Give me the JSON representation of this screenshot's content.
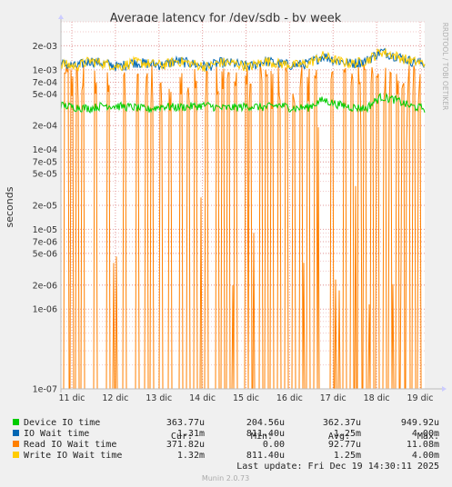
{
  "chart_data": {
    "type": "line",
    "title": "Average latency for /dev/sdb - by week",
    "ylabel": "seconds",
    "xlabel": "",
    "y_scale": "log",
    "ylim": [
      1e-07,
      0.004
    ],
    "y_ticks": [
      {
        "v": 0.002,
        "label": "2e-03"
      },
      {
        "v": 0.001,
        "label": "1e-03"
      },
      {
        "v": 0.0007,
        "label": "7e-04"
      },
      {
        "v": 0.0005,
        "label": "5e-04"
      },
      {
        "v": 0.0002,
        "label": "2e-04"
      },
      {
        "v": 0.0001,
        "label": "1e-04"
      },
      {
        "v": 7e-05,
        "label": "7e-05"
      },
      {
        "v": 5e-05,
        "label": "5e-05"
      },
      {
        "v": 2e-05,
        "label": "2e-05"
      },
      {
        "v": 1e-05,
        "label": "1e-05"
      },
      {
        "v": 7e-06,
        "label": "7e-06"
      },
      {
        "v": 5e-06,
        "label": "5e-06"
      },
      {
        "v": 2e-06,
        "label": "2e-06"
      },
      {
        "v": 1e-06,
        "label": "1e-06"
      },
      {
        "v": 1e-07,
        "label": "1e-07"
      }
    ],
    "x_ticks": [
      "11 dic",
      "12 dic",
      "13 dic",
      "14 dic",
      "15 dic",
      "16 dic",
      "17 dic",
      "18 dic",
      "19 dic"
    ],
    "grid": true,
    "series": [
      {
        "name": "Device IO time",
        "color": "#00cc00",
        "profile": [
          0.00036,
          0.00034,
          0.00033,
          0.00036,
          0.00035,
          0.00034,
          0.00032,
          0.00035,
          0.00034,
          0.00035,
          0.00036,
          0.00033,
          0.00034,
          0.00035,
          0.00034,
          0.00036,
          0.00033,
          0.00034,
          0.00042,
          0.00037,
          0.00034,
          0.00033,
          0.00046,
          0.00042,
          0.00035,
          0.00033
        ]
      },
      {
        "name": "IO Wait time",
        "color": "#0066b3",
        "profile": [
          0.0012,
          0.0011,
          0.0013,
          0.0012,
          0.0011,
          0.00125,
          0.0012,
          0.00115,
          0.0013,
          0.0012,
          0.0011,
          0.00125,
          0.0012,
          0.0011,
          0.0013,
          0.0012,
          0.00115,
          0.0012,
          0.0015,
          0.0013,
          0.0012,
          0.0013,
          0.0017,
          0.0015,
          0.0013,
          0.0012
        ]
      },
      {
        "name": "Read IO Wait time",
        "color": "#ff8000",
        "spikes": [
          0.012,
          0.018,
          0.03,
          0.045,
          0.06,
          0.095,
          0.13,
          0.175,
          0.21,
          0.235,
          0.25,
          0.275,
          0.3,
          0.33,
          0.35,
          0.37,
          0.4,
          0.43,
          0.445,
          0.46,
          0.48,
          0.51,
          0.52,
          0.55,
          0.565,
          0.58,
          0.6,
          0.62,
          0.64,
          0.66,
          0.68,
          0.7,
          0.745,
          0.78,
          0.8,
          0.82,
          0.835,
          0.855,
          0.87,
          0.89,
          0.905,
          0.925,
          0.94,
          0.955,
          0.97,
          0.985
        ]
      },
      {
        "name": "Write IO Wait time",
        "color": "#ffcc00",
        "profile": [
          0.0012,
          0.0011,
          0.0013,
          0.0012,
          0.0011,
          0.00125,
          0.0012,
          0.00115,
          0.0013,
          0.0012,
          0.0011,
          0.00125,
          0.0012,
          0.0011,
          0.0013,
          0.0012,
          0.00115,
          0.0012,
          0.0015,
          0.0013,
          0.0012,
          0.0013,
          0.0017,
          0.0015,
          0.0013,
          0.0012
        ]
      }
    ]
  },
  "legend": {
    "headers": {
      "cur": "Cur:",
      "min": "Min:",
      "avg": "Avg:",
      "max": "Max:"
    },
    "rows": [
      {
        "name": "Device IO time",
        "color": "#00cc00",
        "cur": "363.77u",
        "min": "204.56u",
        "avg": "362.37u",
        "max": "949.92u"
      },
      {
        "name": "IO Wait time",
        "color": "#0066b3",
        "cur": "1.31m",
        "min": "811.40u",
        "avg": "1.25m",
        "max": "4.00m"
      },
      {
        "name": "Read IO Wait time",
        "color": "#ff8000",
        "cur": "371.82u",
        "min": "0.00",
        "avg": "92.77u",
        "max": "11.08m"
      },
      {
        "name": "Write IO Wait time",
        "color": "#ffcc00",
        "cur": "1.32m",
        "min": "811.40u",
        "avg": "1.25m",
        "max": "4.00m"
      }
    ]
  },
  "last_update": "Last update: Fri Dec 19 14:30:11 2025",
  "footer": "Munin 2.0.73",
  "side_label": "RRDTOOL / TOBI OETIKER"
}
